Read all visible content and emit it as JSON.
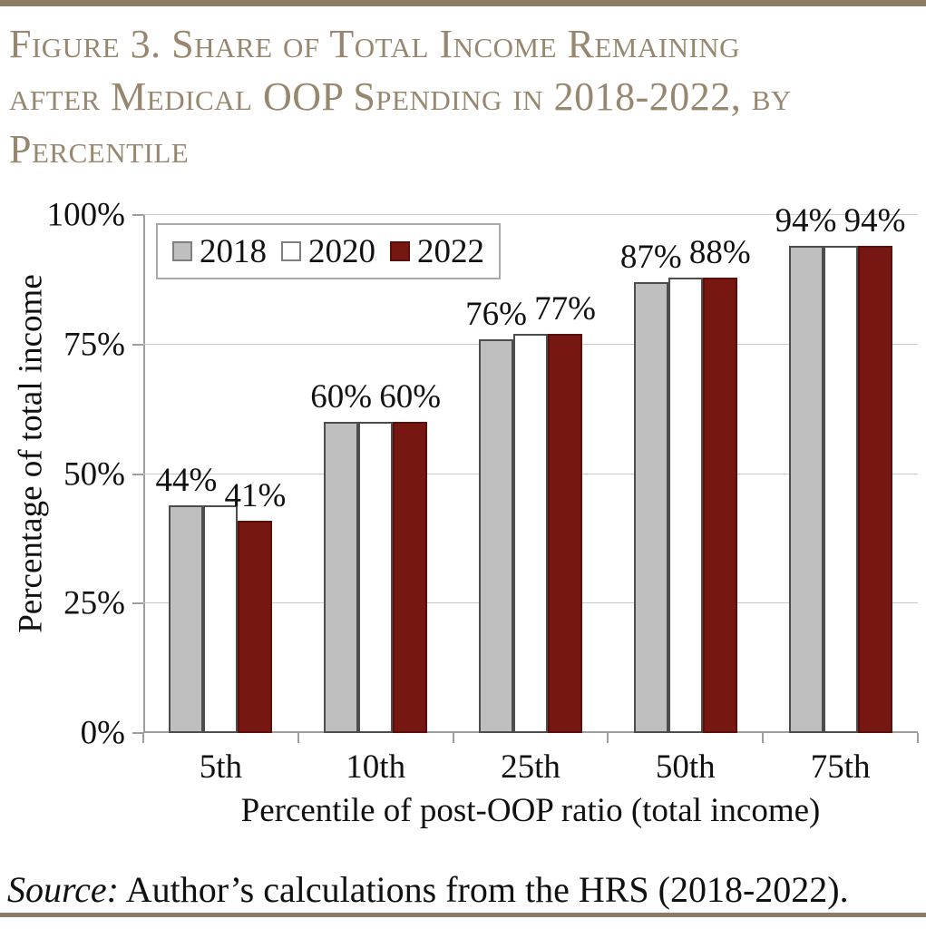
{
  "figure": {
    "title_lines": [
      "Figure 3. Share of Total Income Remaining",
      "after Medical OOP Spending in 2018-2022, by",
      "Percentile"
    ],
    "source": {
      "prefix": "Source:",
      "rest": " Author’s calculations from the HRS (2018-2022)."
    },
    "accent_rule_color": "#8c7c66",
    "title_color": "#97876f"
  },
  "chart_data": {
    "type": "bar",
    "title": "Figure 3. Share of Total Income Remaining after Medical OOP Spending in 2018-2022, by Percentile",
    "categories": [
      "5th",
      "10th",
      "25th",
      "50th",
      "75th"
    ],
    "series": [
      {
        "name": "2018",
        "color": "#bfbfbf",
        "edge": "#4d4d4d",
        "values": [
          44,
          60,
          76,
          87,
          94
        ],
        "data_labels": [
          "44%",
          "60%",
          "76%",
          "87%",
          "94%"
        ]
      },
      {
        "name": "2020",
        "color": "#ffffff",
        "edge": "#4d4d4d",
        "values": [
          44,
          60,
          77,
          88,
          94
        ],
        "data_labels": null
      },
      {
        "name": "2022",
        "color": "#771712",
        "edge": "#5a0f0b",
        "values": [
          41,
          60,
          77,
          88,
          94
        ],
        "data_labels": [
          "41%",
          "60%",
          "77%",
          "88%",
          "94%"
        ]
      }
    ],
    "xlabel": "Percentile of post-OOP ratio (total income)",
    "ylabel": "Percentage of total income",
    "yticks": [
      "0%",
      "25%",
      "50%",
      "75%",
      "100%"
    ],
    "ylim": [
      0,
      100
    ],
    "grid": true,
    "legend_position": "top-left",
    "legend_entries": [
      "2018",
      "2020",
      "2022"
    ]
  }
}
